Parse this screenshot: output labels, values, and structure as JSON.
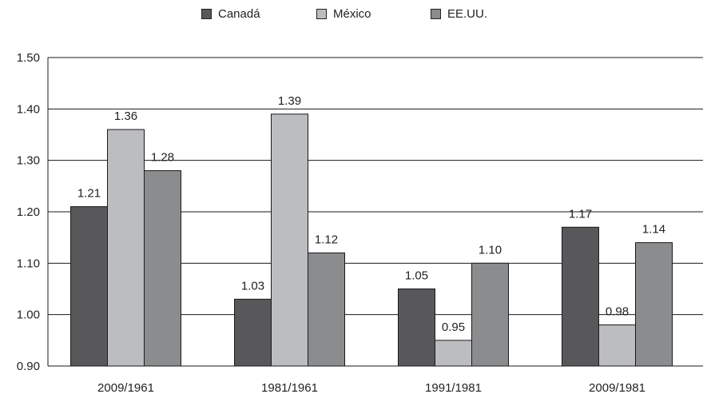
{
  "chart_data": {
    "type": "bar",
    "categories": [
      "2009/1961",
      "1981/1961",
      "1991/1981",
      "2009/1981"
    ],
    "series": [
      {
        "name": "Canadá",
        "values": [
          1.21,
          1.03,
          1.05,
          1.17
        ],
        "labels": [
          "1.21",
          "1.03",
          "1.05",
          "1.17"
        ],
        "color": "#58585a"
      },
      {
        "name": "México",
        "values": [
          1.36,
          1.39,
          0.95,
          0.98
        ],
        "labels": [
          "1.36",
          "1.39",
          "0.95",
          "0.98"
        ],
        "color": "#bcbdc0"
      },
      {
        "name": "EE.UU.",
        "values": [
          1.28,
          1.12,
          1.1,
          1.14
        ],
        "labels": [
          "1.28",
          "1.12",
          "1.10",
          "1.14"
        ],
        "color": "#8b8c8e"
      }
    ],
    "ylim": [
      0.9,
      1.5
    ],
    "yticks": [
      "0.90",
      "1.00",
      "1.10",
      "1.20",
      "1.30",
      "1.40",
      "1.50"
    ],
    "grid": true,
    "legend": "top-center",
    "title": "",
    "xlabel": "",
    "ylabel": ""
  }
}
